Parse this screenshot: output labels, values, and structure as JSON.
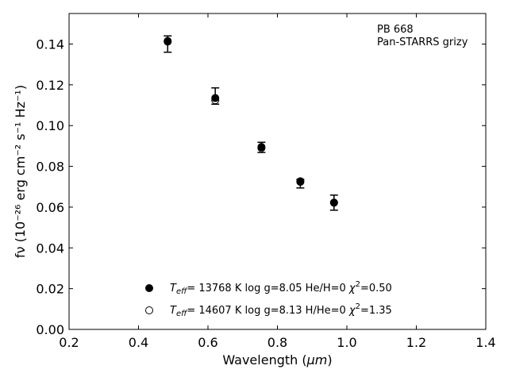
{
  "chart_data": {
    "type": "scatter",
    "annotation": [
      "PB 668",
      "Pan-STARRS grizy"
    ],
    "xlabel_prefix": "Wavelength (",
    "xlabel_unit": "μm",
    "xlabel_suffix": ")",
    "ylabel": "fν (10⁻²⁶ erg cm⁻² s⁻¹ Hz⁻¹)",
    "xlim": [
      0.2,
      1.4
    ],
    "ylim": [
      0.0,
      0.155
    ],
    "xticks": [
      0.2,
      0.4,
      0.6,
      0.8,
      1.0,
      1.2,
      1.4
    ],
    "xtick_labels": [
      "0.2",
      "0.4",
      "0.6",
      "0.8",
      "1.0",
      "1.2",
      "1.4"
    ],
    "yticks": [
      0.0,
      0.02,
      0.04,
      0.06,
      0.08,
      0.1,
      0.12,
      0.14
    ],
    "ytick_labels": [
      "0.00",
      "0.02",
      "0.04",
      "0.06",
      "0.08",
      "0.10",
      "0.12",
      "0.14"
    ],
    "grid": false,
    "legend_position": "bottom-center",
    "observed": {
      "x": [
        0.484,
        0.621,
        0.754,
        0.866,
        0.963
      ],
      "y": [
        0.14,
        0.1145,
        0.0893,
        0.0715,
        0.0622
      ],
      "yerr": [
        0.004,
        0.004,
        0.0025,
        0.0021,
        0.0037
      ]
    },
    "series": [
      {
        "name": "T_eff= 13768 K  log g=8.05  He/H=0  χ²=0.50",
        "marker": "filled",
        "x": [
          0.484,
          0.621,
          0.754,
          0.866,
          0.963
        ],
        "y": [
          0.1415,
          0.1135,
          0.0895,
          0.0727,
          0.0622
        ]
      },
      {
        "name": "T_eff= 14607 K  log g=8.13  H/He=0  χ²=1.35",
        "marker": "open",
        "x": [
          0.484,
          0.621,
          0.754,
          0.866,
          0.963
        ],
        "y": [
          0.1412,
          0.1125,
          0.089,
          0.0724,
          0.0622
        ]
      }
    ],
    "legend": [
      {
        "t": "T",
        "sub": "eff",
        "mid": "= 13768 K  log g=8.05  He/H=0  ",
        "chi": "χ",
        "sup": "2",
        "tail": "=0.50"
      },
      {
        "t": "T",
        "sub": "eff",
        "mid": "= 14607 K  log g=8.13  H/He=0  ",
        "chi": "χ",
        "sup": "2",
        "tail": "=1.35"
      }
    ],
    "colors": {
      "marker": "#000000",
      "background": "#ffffff",
      "axes": "#000000"
    }
  }
}
